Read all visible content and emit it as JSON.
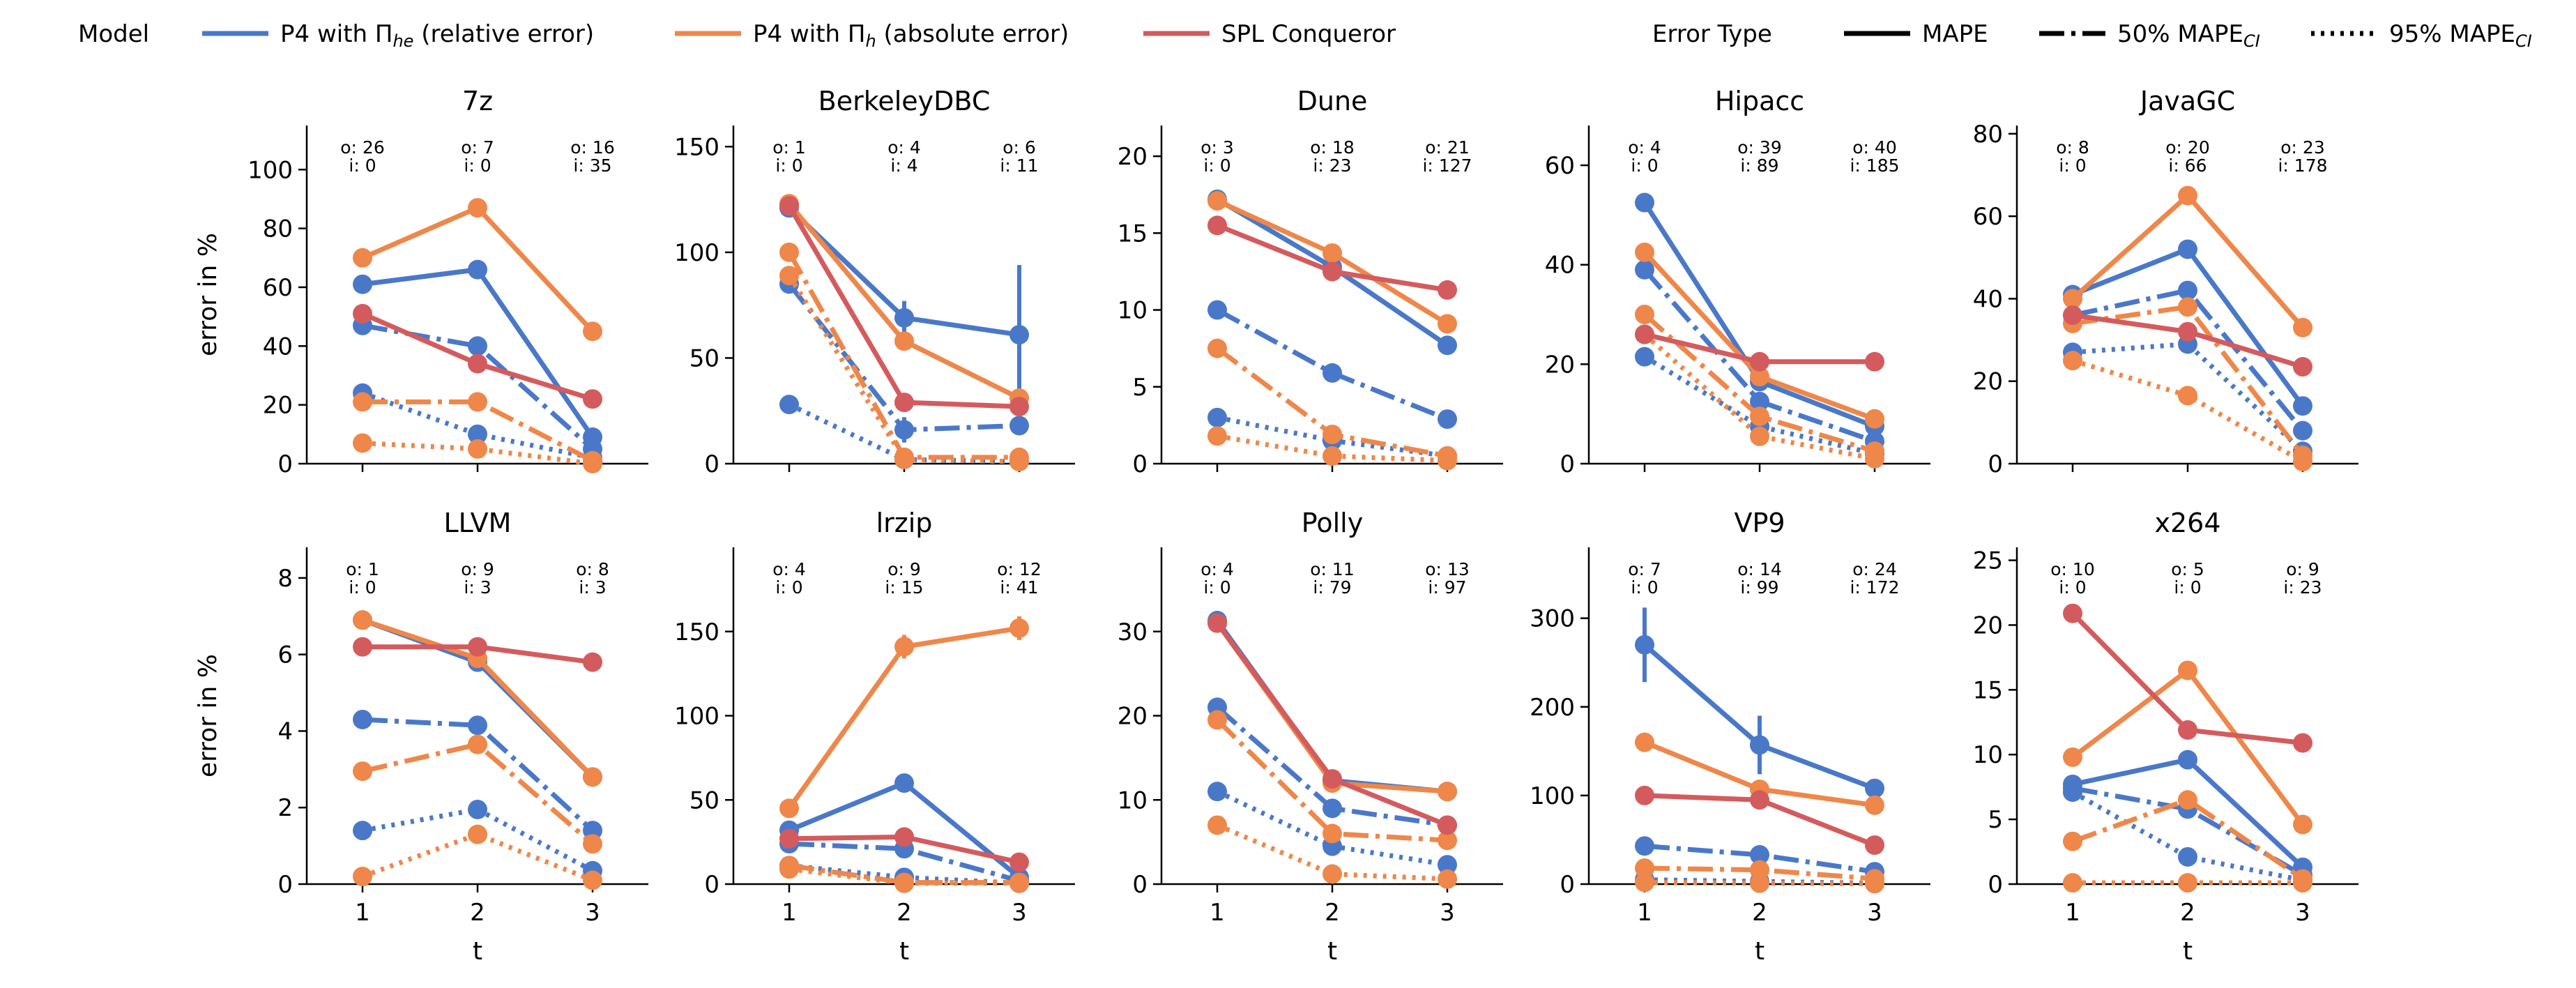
{
  "colors": {
    "p4_he": "#4a78c9",
    "p4_h": "#ee8749",
    "spl": "#d45b5d"
  },
  "legend": {
    "model_title": "Model",
    "models": [
      {
        "key": "p4_he",
        "name": "P4 with Π",
        "sub": "he",
        "suffix": " (relative error)"
      },
      {
        "key": "p4_h",
        "name": "P4 with Π",
        "sub": "h",
        "suffix": " (absolute error)"
      },
      {
        "key": "spl",
        "name": "SPL Conqueror",
        "sub": "",
        "suffix": ""
      }
    ],
    "error_title": "Error Type",
    "errors": [
      {
        "key": "mape",
        "name": "MAPE",
        "sub": ""
      },
      {
        "key": "mape50",
        "name": "50% MAPE",
        "sub": "CI"
      },
      {
        "key": "mape95",
        "name": "95% MAPE",
        "sub": "CI"
      }
    ]
  },
  "chart_data": {
    "type": "line",
    "x": [
      1,
      2,
      3
    ],
    "xlabel": "t",
    "ylabel": "error in %",
    "panels": [
      {
        "title": "7z",
        "ylim": [
          0,
          115
        ],
        "yticks": [
          0,
          20,
          40,
          60,
          80,
          100
        ],
        "annotations": [
          {
            "o": "o: 26",
            "i": "i: 0"
          },
          {
            "o": "o: 7",
            "i": "i: 0"
          },
          {
            "o": "o: 16",
            "i": "i: 35"
          }
        ],
        "series": [
          {
            "model": "p4_he",
            "error": "mape",
            "values": [
              61,
              66,
              9
            ]
          },
          {
            "model": "p4_he",
            "error": "mape50",
            "values": [
              47,
              40,
              5
            ]
          },
          {
            "model": "p4_he",
            "error": "mape95",
            "values": [
              24,
              10,
              2
            ]
          },
          {
            "model": "p4_h",
            "error": "mape",
            "values": [
              70,
              87,
              45
            ]
          },
          {
            "model": "p4_h",
            "error": "mape50",
            "values": [
              21,
              21,
              1
            ]
          },
          {
            "model": "p4_h",
            "error": "mape95",
            "values": [
              7,
              5,
              0
            ]
          },
          {
            "model": "spl",
            "error": "mape",
            "values": [
              51,
              34,
              22
            ]
          }
        ]
      },
      {
        "title": "BerkeleyDBC",
        "ylim": [
          0,
          160
        ],
        "yticks": [
          0,
          50,
          100,
          150
        ],
        "annotations": [
          {
            "o": "o: 1",
            "i": "i: 0"
          },
          {
            "o": "o: 4",
            "i": "i: 4"
          },
          {
            "o": "o: 6",
            "i": "i: 11"
          }
        ],
        "series": [
          {
            "model": "p4_he",
            "error": "mape",
            "values": [
              121,
              69,
              61
            ],
            "err": [
              0,
              8,
              33
            ]
          },
          {
            "model": "p4_he",
            "error": "mape50",
            "values": [
              85,
              16,
              18
            ],
            "err": [
              0,
              6,
              0
            ]
          },
          {
            "model": "p4_he",
            "error": "mape95",
            "values": [
              28,
              2,
              1
            ]
          },
          {
            "model": "p4_h",
            "error": "mape",
            "values": [
              123,
              58,
              31
            ]
          },
          {
            "model": "p4_h",
            "error": "mape50",
            "values": [
              100,
              3,
              3
            ]
          },
          {
            "model": "p4_h",
            "error": "mape95",
            "values": [
              89,
              2,
              1
            ]
          },
          {
            "model": "spl",
            "error": "mape",
            "values": [
              122,
              29,
              27
            ]
          }
        ]
      },
      {
        "title": "Dune",
        "ylim": [
          0,
          22
        ],
        "yticks": [
          0,
          5,
          10,
          15,
          20
        ],
        "annotations": [
          {
            "o": "o: 3",
            "i": "i: 0"
          },
          {
            "o": "o: 18",
            "i": "i: 23"
          },
          {
            "o": "o: 21",
            "i": "i: 127"
          }
        ],
        "series": [
          {
            "model": "p4_he",
            "error": "mape",
            "values": [
              17.2,
              12.8,
              7.7
            ]
          },
          {
            "model": "p4_he",
            "error": "mape50",
            "values": [
              10,
              5.9,
              2.9
            ]
          },
          {
            "model": "p4_he",
            "error": "mape95",
            "values": [
              3,
              1.5,
              0.5
            ]
          },
          {
            "model": "p4_h",
            "error": "mape",
            "values": [
              17.1,
              13.7,
              9.1
            ]
          },
          {
            "model": "p4_h",
            "error": "mape50",
            "values": [
              7.5,
              1.9,
              0.5
            ]
          },
          {
            "model": "p4_h",
            "error": "mape95",
            "values": [
              1.8,
              0.5,
              0.2
            ]
          },
          {
            "model": "spl",
            "error": "mape",
            "values": [
              15.5,
              12.5,
              11.3
            ]
          }
        ]
      },
      {
        "title": "Hipacc",
        "ylim": [
          0,
          68
        ],
        "yticks": [
          0,
          20,
          40,
          60
        ],
        "annotations": [
          {
            "o": "o: 4",
            "i": "i: 0"
          },
          {
            "o": "o: 39",
            "i": "i: 89"
          },
          {
            "o": "o: 40",
            "i": "i: 185"
          }
        ],
        "series": [
          {
            "model": "p4_he",
            "error": "mape",
            "values": [
              52.5,
              16.5,
              7.5
            ]
          },
          {
            "model": "p4_he",
            "error": "mape50",
            "values": [
              39,
              12.5,
              4.5
            ]
          },
          {
            "model": "p4_he",
            "error": "mape95",
            "values": [
              21.5,
              7.5,
              2
            ]
          },
          {
            "model": "p4_h",
            "error": "mape",
            "values": [
              42.5,
              17.5,
              9
            ]
          },
          {
            "model": "p4_h",
            "error": "mape50",
            "values": [
              30,
              9.5,
              2.5
            ]
          },
          {
            "model": "p4_h",
            "error": "mape95",
            "values": [
              26,
              5.5,
              1
            ]
          },
          {
            "model": "spl",
            "error": "mape",
            "values": [
              26,
              20.5,
              20.5
            ]
          }
        ]
      },
      {
        "title": "JavaGC",
        "ylim": [
          0,
          82
        ],
        "yticks": [
          0,
          20,
          40,
          60,
          80
        ],
        "annotations": [
          {
            "o": "o: 8",
            "i": "i: 0"
          },
          {
            "o": "o: 20",
            "i": "i: 66"
          },
          {
            "o": "o: 23",
            "i": "i: 178"
          }
        ],
        "series": [
          {
            "model": "p4_he",
            "error": "mape",
            "values": [
              41,
              52,
              14
            ]
          },
          {
            "model": "p4_he",
            "error": "mape50",
            "values": [
              36,
              42,
              8
            ]
          },
          {
            "model": "p4_he",
            "error": "mape95",
            "values": [
              27,
              29,
              3
            ]
          },
          {
            "model": "p4_h",
            "error": "mape",
            "values": [
              40,
              65,
              33
            ]
          },
          {
            "model": "p4_h",
            "error": "mape50",
            "values": [
              34,
              38,
              2
            ]
          },
          {
            "model": "p4_h",
            "error": "mape95",
            "values": [
              25,
              16.5,
              0.5
            ]
          },
          {
            "model": "spl",
            "error": "mape",
            "values": [
              36,
              32,
              23.5
            ]
          }
        ]
      },
      {
        "title": "LLVM",
        "ylim": [
          0,
          8.8
        ],
        "yticks": [
          0,
          2,
          4,
          6,
          8
        ],
        "annotations": [
          {
            "o": "o: 1",
            "i": "i: 0"
          },
          {
            "o": "o: 9",
            "i": "i: 3"
          },
          {
            "o": "o: 8",
            "i": "i: 3"
          }
        ],
        "series": [
          {
            "model": "p4_he",
            "error": "mape",
            "values": [
              6.9,
              5.8,
              2.8
            ]
          },
          {
            "model": "p4_he",
            "error": "mape50",
            "values": [
              4.3,
              4.15,
              1.4
            ]
          },
          {
            "model": "p4_he",
            "error": "mape95",
            "values": [
              1.4,
              1.95,
              0.35
            ]
          },
          {
            "model": "p4_h",
            "error": "mape",
            "values": [
              6.9,
              5.9,
              2.8
            ]
          },
          {
            "model": "p4_h",
            "error": "mape50",
            "values": [
              2.95,
              3.65,
              1.05
            ]
          },
          {
            "model": "p4_h",
            "error": "mape95",
            "values": [
              0.2,
              1.3,
              0.1
            ]
          },
          {
            "model": "spl",
            "error": "mape",
            "values": [
              6.2,
              6.2,
              5.8
            ]
          }
        ]
      },
      {
        "title": "lrzip",
        "ylim": [
          0,
          200
        ],
        "yticks": [
          0,
          50,
          100,
          150
        ],
        "annotations": [
          {
            "o": "o: 4",
            "i": "i: 0"
          },
          {
            "o": "o: 9",
            "i": "i: 15"
          },
          {
            "o": "o: 12",
            "i": "i: 41"
          }
        ],
        "series": [
          {
            "model": "p4_he",
            "error": "mape",
            "values": [
              32,
              60,
              4
            ]
          },
          {
            "model": "p4_he",
            "error": "mape50",
            "values": [
              24,
              21,
              2
            ]
          },
          {
            "model": "p4_he",
            "error": "mape95",
            "values": [
              11,
              4,
              0.5
            ]
          },
          {
            "model": "p4_h",
            "error": "mape",
            "values": [
              45,
              141,
              152
            ],
            "err": [
              0,
              7,
              7
            ]
          },
          {
            "model": "p4_h",
            "error": "mape50",
            "values": [
              11,
              1,
              1
            ]
          },
          {
            "model": "p4_h",
            "error": "mape95",
            "values": [
              9,
              0.5,
              0.5
            ]
          },
          {
            "model": "spl",
            "error": "mape",
            "values": [
              27,
              28,
              13
            ]
          }
        ]
      },
      {
        "title": "Polly",
        "ylim": [
          0,
          40
        ],
        "yticks": [
          0,
          10,
          20,
          30
        ],
        "annotations": [
          {
            "o": "o: 4",
            "i": "i: 0"
          },
          {
            "o": "o: 11",
            "i": "i: 79"
          },
          {
            "o": "o: 13",
            "i": "i: 97"
          }
        ],
        "series": [
          {
            "model": "p4_he",
            "error": "mape",
            "values": [
              31.3,
              12.3,
              11
            ]
          },
          {
            "model": "p4_he",
            "error": "mape50",
            "values": [
              21,
              9,
              7
            ]
          },
          {
            "model": "p4_he",
            "error": "mape95",
            "values": [
              11,
              4.5,
              2.3
            ]
          },
          {
            "model": "p4_h",
            "error": "mape",
            "values": [
              31,
              12,
              11
            ]
          },
          {
            "model": "p4_h",
            "error": "mape50",
            "values": [
              19.5,
              6,
              5.2
            ]
          },
          {
            "model": "p4_h",
            "error": "mape95",
            "values": [
              7,
              1.2,
              0.6
            ]
          },
          {
            "model": "spl",
            "error": "mape",
            "values": [
              31,
              12.5,
              7
            ]
          }
        ]
      },
      {
        "title": "VP9",
        "ylim": [
          0,
          380
        ],
        "yticks": [
          0,
          100,
          200,
          300
        ],
        "annotations": [
          {
            "o": "o: 7",
            "i": "i: 0"
          },
          {
            "o": "o: 14",
            "i": "i: 99"
          },
          {
            "o": "o: 24",
            "i": "i: 172"
          }
        ],
        "series": [
          {
            "model": "p4_he",
            "error": "mape",
            "values": [
              270,
              157,
              108
            ],
            "err": [
              42,
              33,
              0
            ]
          },
          {
            "model": "p4_he",
            "error": "mape50",
            "values": [
              43,
              33,
              14
            ],
            "err": [
              0,
              10,
              0
            ]
          },
          {
            "model": "p4_he",
            "error": "mape95",
            "values": [
              5,
              3,
              1
            ]
          },
          {
            "model": "p4_h",
            "error": "mape",
            "values": [
              160,
              107,
              89
            ]
          },
          {
            "model": "p4_h",
            "error": "mape50",
            "values": [
              18,
              16,
              6
            ]
          },
          {
            "model": "p4_h",
            "error": "mape95",
            "values": [
              2,
              1,
              0.5
            ]
          },
          {
            "model": "spl",
            "error": "mape",
            "values": [
              100,
              95,
              44
            ]
          }
        ]
      },
      {
        "title": "x264",
        "ylim": [
          0,
          26
        ],
        "yticks": [
          0,
          5,
          10,
          15,
          20,
          25
        ],
        "annotations": [
          {
            "o": "o: 10",
            "i": "i: 0"
          },
          {
            "o": "o: 5",
            "i": "i: 0"
          },
          {
            "o": "o: 9",
            "i": "i: 23"
          }
        ],
        "series": [
          {
            "model": "p4_he",
            "error": "mape",
            "values": [
              7.7,
              9.6,
              1.3
            ]
          },
          {
            "model": "p4_he",
            "error": "mape50",
            "values": [
              7.4,
              5.8,
              0.7
            ]
          },
          {
            "model": "p4_he",
            "error": "mape95",
            "values": [
              7.1,
              2.1,
              0.3
            ]
          },
          {
            "model": "p4_h",
            "error": "mape",
            "values": [
              9.8,
              16.5,
              4.6
            ]
          },
          {
            "model": "p4_h",
            "error": "mape50",
            "values": [
              3.3,
              6.5,
              0.4
            ]
          },
          {
            "model": "p4_h",
            "error": "mape95",
            "values": [
              0.1,
              0.1,
              0.1
            ]
          },
          {
            "model": "spl",
            "error": "mape",
            "values": [
              20.9,
              11.9,
              10.9
            ]
          }
        ]
      }
    ]
  }
}
